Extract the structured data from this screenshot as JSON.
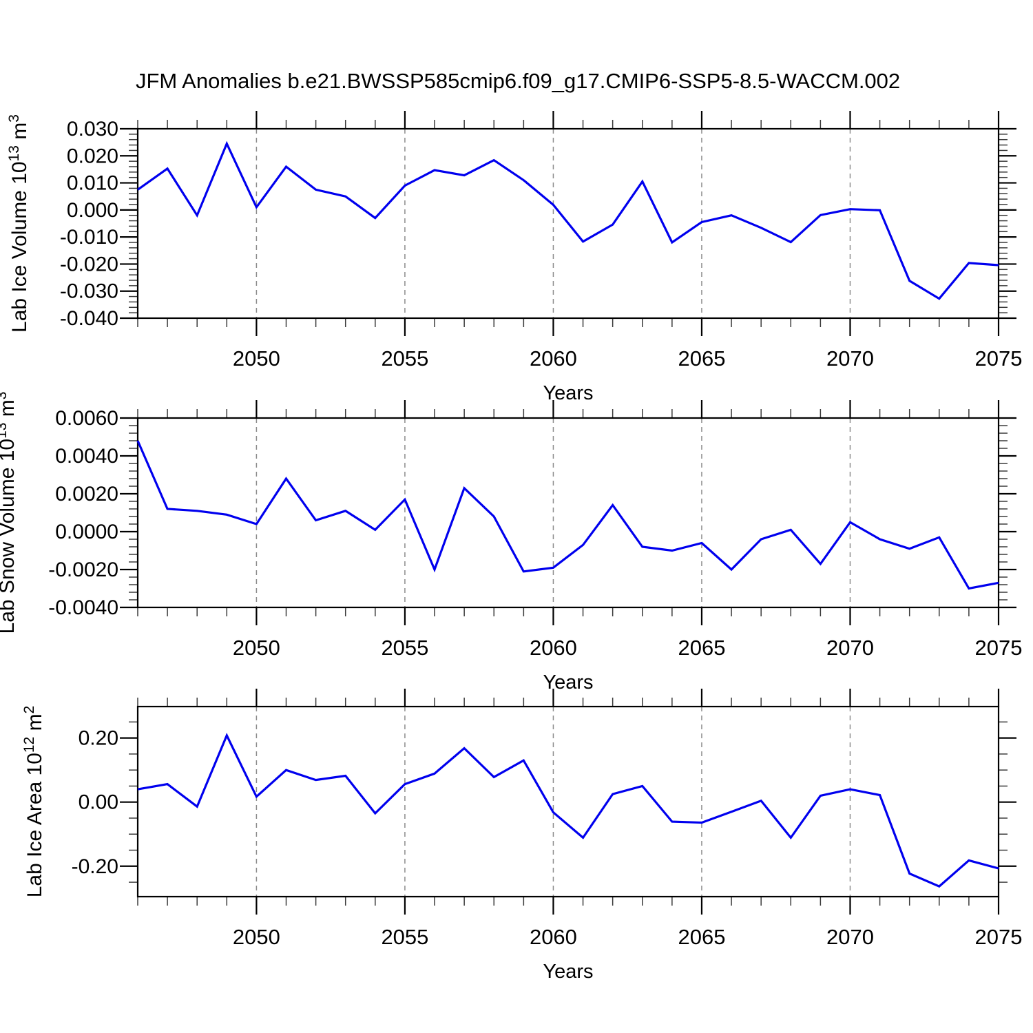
{
  "title": "JFM Anomalies b.e21.BWSSP585cmip6.f09_g17.CMIP6-SSP5-8.5-WACCM.002",
  "colors": {
    "line": "#0000ee",
    "axis": "#000000",
    "minor_tick": "#3a3a3a",
    "grid": "#8c8c8c",
    "background": "#ffffff"
  },
  "x_axis": {
    "label": "Years",
    "start": 2046,
    "end": 2075,
    "minor_step": 1,
    "major_ticks": [
      {
        "value": 2050,
        "label": "2050"
      },
      {
        "value": 2055,
        "label": "2055"
      },
      {
        "value": 2060,
        "label": "2060"
      },
      {
        "value": 2065,
        "label": "2065"
      },
      {
        "value": 2070,
        "label": "2070"
      },
      {
        "value": 2075,
        "label": "2075"
      }
    ],
    "gridline_years": [
      2050,
      2055,
      2060,
      2065,
      2070
    ]
  },
  "chart_data": [
    {
      "type": "line",
      "name": "lab-ice-volume",
      "ylabel_parts": [
        {
          "t": "Lab Ice Volume 10"
        },
        {
          "t": "13",
          "sup": true
        },
        {
          "t": " m"
        },
        {
          "t": "3",
          "sup": true
        }
      ],
      "xlabel": "Years",
      "ylim": [
        -0.04,
        0.03
      ],
      "yticks": {
        "major_step": 0.01,
        "minor_step": 0.002,
        "labels": [
          "0.030",
          "0.020",
          "0.010",
          "0.000",
          "-0.010",
          "-0.020",
          "-0.030",
          "-0.040"
        ],
        "values": [
          0.03,
          0.02,
          0.01,
          0.0,
          -0.01,
          -0.02,
          -0.03,
          -0.04
        ]
      },
      "x": [
        2046,
        2047,
        2048,
        2049,
        2050,
        2051,
        2052,
        2053,
        2054,
        2055,
        2056,
        2057,
        2058,
        2059,
        2060,
        2061,
        2062,
        2063,
        2064,
        2065,
        2066,
        2067,
        2068,
        2069,
        2070,
        2071,
        2072,
        2073,
        2074,
        2075
      ],
      "values": [
        0.0075,
        0.0153,
        -0.002,
        0.0245,
        0.001,
        0.016,
        0.0075,
        0.005,
        -0.003,
        0.009,
        0.0147,
        0.0128,
        0.0184,
        0.011,
        0.0019,
        -0.0117,
        -0.0054,
        0.0105,
        -0.012,
        -0.0045,
        -0.002,
        -0.0066,
        -0.0119,
        -0.0019,
        0.0003,
        -0.0001,
        -0.0262,
        -0.0328,
        -0.0196,
        -0.0204
      ]
    },
    {
      "type": "line",
      "name": "lab-snow-volume",
      "ylabel_parts": [
        {
          "t": "Lab Snow Volume 10"
        },
        {
          "t": "13",
          "sup": true
        },
        {
          "t": " m"
        },
        {
          "t": "3",
          "sup": true
        }
      ],
      "xlabel": "Years",
      "ylim": [
        -0.004,
        0.006
      ],
      "yticks": {
        "major_step": 0.002,
        "minor_step": 0.0004,
        "labels": [
          "0.0060",
          "0.0040",
          "0.0020",
          "0.0000",
          "-0.0020",
          "-0.0040"
        ],
        "values": [
          0.006,
          0.004,
          0.002,
          0.0,
          -0.002,
          -0.004
        ]
      },
      "x": [
        2046,
        2047,
        2048,
        2049,
        2050,
        2051,
        2052,
        2053,
        2054,
        2055,
        2056,
        2057,
        2058,
        2059,
        2060,
        2061,
        2062,
        2063,
        2064,
        2065,
        2066,
        2067,
        2068,
        2069,
        2070,
        2071,
        2072,
        2073,
        2074,
        2075
      ],
      "values": [
        0.0048,
        0.0012,
        0.0011,
        0.0009,
        0.0004,
        0.0028,
        0.0006,
        0.0011,
        0.0001,
        0.0017,
        -0.002,
        0.0023,
        0.0008,
        -0.0021,
        -0.0019,
        -0.0007,
        0.0014,
        -0.0008,
        -0.001,
        -0.0006,
        -0.002,
        -0.0004,
        0.0001,
        -0.0017,
        0.0005,
        -0.0004,
        -0.0009,
        -0.0003,
        -0.003,
        -0.0027
      ]
    },
    {
      "type": "line",
      "name": "lab-ice-area",
      "ylabel_parts": [
        {
          "t": "Lab Ice Area 10"
        },
        {
          "t": "12",
          "sup": true
        },
        {
          "t": " m"
        },
        {
          "t": "2",
          "sup": true
        }
      ],
      "xlabel": "Years",
      "ylim": [
        -0.295,
        0.298
      ],
      "yticks": {
        "major_step": 0.2,
        "minor_step": 0.05,
        "labels": [
          "0.20",
          "0.00",
          "-0.20"
        ],
        "values": [
          0.2,
          0.0,
          -0.2
        ]
      },
      "x": [
        2046,
        2047,
        2048,
        2049,
        2050,
        2051,
        2052,
        2053,
        2054,
        2055,
        2056,
        2057,
        2058,
        2059,
        2060,
        2061,
        2062,
        2063,
        2064,
        2065,
        2066,
        2067,
        2068,
        2069,
        2070,
        2071,
        2072,
        2073,
        2074,
        2075
      ],
      "values": [
        0.04,
        0.056,
        -0.014,
        0.208,
        0.017,
        0.1,
        0.069,
        0.082,
        -0.035,
        0.056,
        0.089,
        0.168,
        0.078,
        0.13,
        -0.032,
        -0.111,
        0.025,
        0.05,
        -0.061,
        -0.064,
        -0.03,
        0.004,
        -0.111,
        0.02,
        0.04,
        0.022,
        -0.223,
        -0.263,
        -0.182,
        -0.207
      ]
    }
  ]
}
